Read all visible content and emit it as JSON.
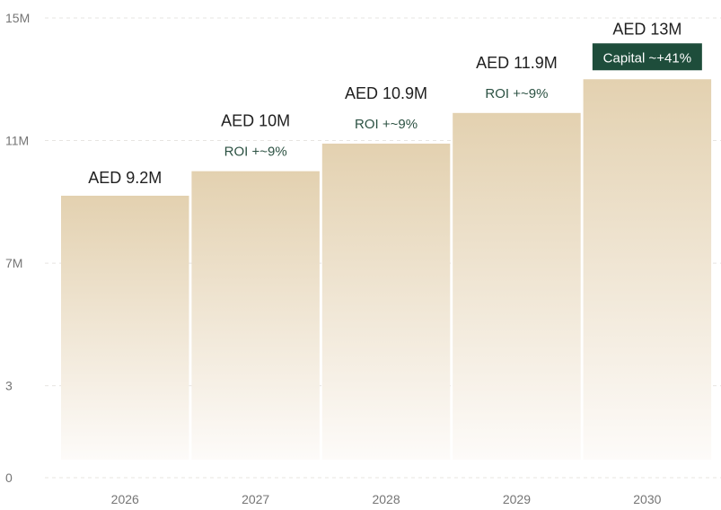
{
  "chart_data": {
    "type": "bar",
    "categories": [
      "2026",
      "2027",
      "2028",
      "2029",
      "2030"
    ],
    "values": [
      9.2,
      10,
      10.9,
      11.9,
      13
    ],
    "value_labels": [
      "AED 9.2M",
      "AED 10M",
      "AED 10.9M",
      "AED 11.9M",
      "AED 13M"
    ],
    "annotations": [
      "",
      "ROI +~9%",
      "ROI +~9%",
      "ROI +~9%",
      "Capital ~+41%"
    ],
    "highlight_index": 4,
    "yticks": [
      0,
      3,
      7,
      11,
      15
    ],
    "ytick_labels": [
      "0",
      "3",
      "7M",
      "11M",
      "15M"
    ],
    "ylim": [
      0,
      15
    ],
    "grid": true,
    "title": "",
    "xlabel": "",
    "ylabel": ""
  },
  "colors": {
    "bar_top": "#e3d1b0",
    "bar_bottom": "#fdfbf9",
    "accent": "#1e4d3b",
    "annotation_text": "#2c5243",
    "label_text": "#1f1f1f",
    "tick_text": "#757575",
    "grid": "#e7e4e1",
    "badge_text": "#ffffff"
  }
}
